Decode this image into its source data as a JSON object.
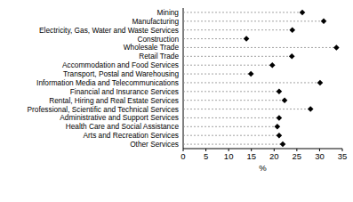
{
  "chart_data": {
    "type": "dot",
    "orientation": "horizontal",
    "xlabel": "%",
    "categories": [
      "Mining",
      "Manufacturing",
      "Electricity, Gas, Water and Waste Services",
      "Construction",
      "Wholesale Trade",
      "Retail Trade",
      "Accommodation and Food Services",
      "Transport, Postal and Warehousing",
      "Information Media and Telecommunications",
      "Financial and Insurance Services",
      "Rental, Hiring and Real Estate Services",
      "Professional, Scientific and Technical Services",
      "Administrative and Support Services",
      "Health Care and Social Assistance",
      "Arts and Recreation Services",
      "Other Services"
    ],
    "values": [
      26.2,
      30.9,
      24,
      13.9,
      33.7,
      23.9,
      19.6,
      14.9,
      30.1,
      21.1,
      22.3,
      28,
      21.1,
      20.7,
      21.1,
      21.9
    ],
    "color": "#000000",
    "marker": "diamond",
    "line_style": "dashed",
    "xlim": [
      0,
      35
    ],
    "xticks": [
      0,
      5,
      10,
      15,
      20,
      25,
      30,
      35
    ]
  }
}
